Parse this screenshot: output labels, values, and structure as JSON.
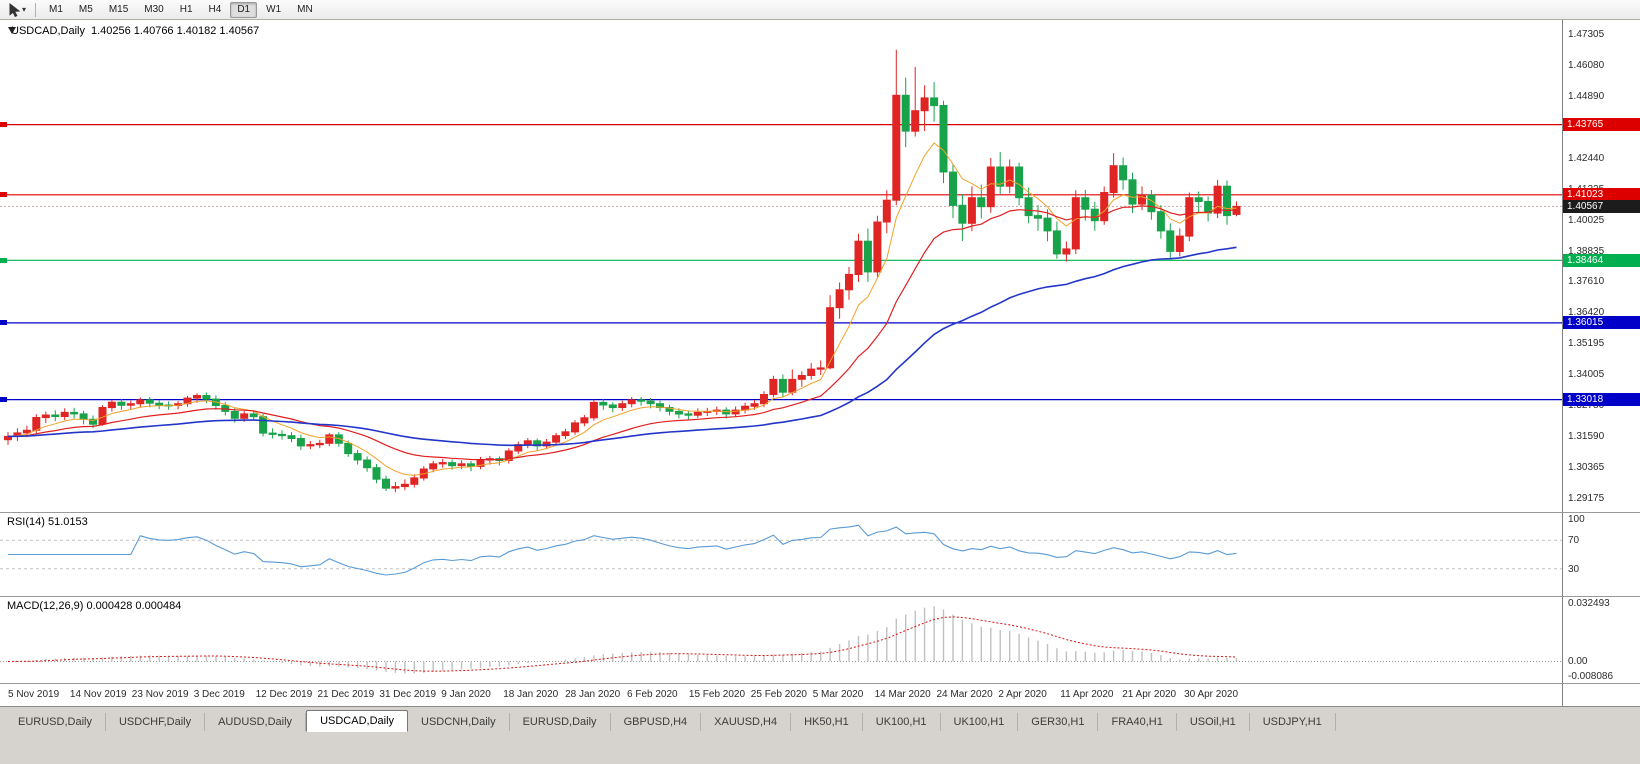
{
  "toolbar": {
    "timeframes": [
      "M1",
      "M5",
      "M15",
      "M30",
      "H1",
      "H4",
      "D1",
      "W1",
      "MN"
    ],
    "active": "D1"
  },
  "chart": {
    "title": "USDCAD,Daily",
    "ohlc": "1.40256 1.40766 1.40182 1.40567",
    "price_axis": {
      "top": 1.47305,
      "bottom": 1.29175,
      "labels": [
        "1.47305",
        "1.46080",
        "1.44890",
        "1.43660",
        "1.42440",
        "1.41225",
        "1.40025",
        "1.38835",
        "1.37610",
        "1.36420",
        "1.35195",
        "1.34005",
        "1.32780",
        "1.31590",
        "1.30365",
        "1.29175"
      ]
    },
    "hlines": [
      {
        "price": 1.43765,
        "label": "1.43765",
        "color": "#dd0000"
      },
      {
        "price": 1.41023,
        "label": "1.41023",
        "color": "#dd0000"
      },
      {
        "price": 1.38464,
        "label": "1.38464",
        "color": "#00b050"
      },
      {
        "price": 1.36015,
        "label": "1.36015",
        "color": "#0000c8"
      },
      {
        "price": 1.33018,
        "label": "1.33018",
        "color": "#0000c8"
      }
    ],
    "last_price": {
      "value": 1.40567,
      "label": "1.40567",
      "bg": "#1c1c1c"
    },
    "date_labels": [
      "5 Nov 2019",
      "14 Nov 2019",
      "23 Nov 2019",
      "3 Dec 2019",
      "12 Dec 2019",
      "21 Dec 2019",
      "31 Dec 2019",
      "9 Jan 2020",
      "18 Jan 2020",
      "28 Jan 2020",
      "6 Feb 2020",
      "15 Feb 2020",
      "25 Feb 2020",
      "5 Mar 2020",
      "14 Mar 2020",
      "24 Mar 2020",
      "2 Apr 2020",
      "11 Apr 2020",
      "21 Apr 2020",
      "30 Apr 2020"
    ]
  },
  "chart_data": {
    "type": "candlestick",
    "symbol": "USDCAD",
    "timeframe": "Daily",
    "up_color": "#e02525",
    "down_color": "#18a24a",
    "moving_averages": [
      {
        "period": 7,
        "color": "#f2a227",
        "width": 1
      },
      {
        "period": 20,
        "color": "#e02020",
        "width": 1.2
      },
      {
        "period": 55,
        "color": "#2336c9",
        "width": 1.6
      }
    ],
    "candles": [
      [
        1.3145,
        1.3175,
        1.3125,
        1.3158
      ],
      [
        1.3158,
        1.319,
        1.314,
        1.3172
      ],
      [
        1.3172,
        1.32,
        1.3155,
        1.3182
      ],
      [
        1.3182,
        1.3245,
        1.317,
        1.3232
      ],
      [
        1.3232,
        1.3255,
        1.321,
        1.3242
      ],
      [
        1.3242,
        1.326,
        1.3218,
        1.3236
      ],
      [
        1.3236,
        1.3268,
        1.3222,
        1.3252
      ],
      [
        1.3252,
        1.327,
        1.3228,
        1.3246
      ],
      [
        1.3246,
        1.3258,
        1.3205,
        1.3225
      ],
      [
        1.3225,
        1.324,
        1.319,
        1.3206
      ],
      [
        1.3206,
        1.328,
        1.32,
        1.3271
      ],
      [
        1.3271,
        1.33,
        1.3255,
        1.3292
      ],
      [
        1.3292,
        1.3305,
        1.3262,
        1.328
      ],
      [
        1.328,
        1.3298,
        1.3262,
        1.3286
      ],
      [
        1.3286,
        1.331,
        1.327,
        1.3301
      ],
      [
        1.3301,
        1.3312,
        1.3272,
        1.3288
      ],
      [
        1.3288,
        1.33,
        1.3265,
        1.3281
      ],
      [
        1.3281,
        1.3295,
        1.3262,
        1.3279
      ],
      [
        1.3279,
        1.3296,
        1.3264,
        1.3286
      ],
      [
        1.3286,
        1.3316,
        1.3274,
        1.3308
      ],
      [
        1.3308,
        1.3327,
        1.329,
        1.3318
      ],
      [
        1.3318,
        1.333,
        1.3288,
        1.3304
      ],
      [
        1.3304,
        1.3318,
        1.3262,
        1.3279
      ],
      [
        1.3279,
        1.3292,
        1.324,
        1.3256
      ],
      [
        1.3256,
        1.327,
        1.3212,
        1.3229
      ],
      [
        1.3229,
        1.3258,
        1.3215,
        1.3246
      ],
      [
        1.3246,
        1.326,
        1.322,
        1.3235
      ],
      [
        1.3235,
        1.3246,
        1.3158,
        1.3171
      ],
      [
        1.3171,
        1.319,
        1.315,
        1.3166
      ],
      [
        1.3166,
        1.3182,
        1.3145,
        1.3161
      ],
      [
        1.3161,
        1.3175,
        1.3135,
        1.315
      ],
      [
        1.315,
        1.3165,
        1.3105,
        1.3121
      ],
      [
        1.3121,
        1.314,
        1.3108,
        1.3126
      ],
      [
        1.3126,
        1.3145,
        1.3112,
        1.3131
      ],
      [
        1.3131,
        1.3172,
        1.312,
        1.3164
      ],
      [
        1.3164,
        1.3175,
        1.3118,
        1.3131
      ],
      [
        1.3131,
        1.3142,
        1.3078,
        1.3091
      ],
      [
        1.3091,
        1.3105,
        1.3048,
        1.3066
      ],
      [
        1.3066,
        1.308,
        1.302,
        1.3036
      ],
      [
        1.3036,
        1.305,
        1.2975,
        1.2991
      ],
      [
        1.2991,
        1.3005,
        1.2945,
        1.2956
      ],
      [
        1.2956,
        1.298,
        1.294,
        1.2962
      ],
      [
        1.2962,
        1.299,
        1.2948,
        1.2971
      ],
      [
        1.2971,
        1.301,
        1.2958,
        1.2996
      ],
      [
        1.2996,
        1.3042,
        1.2985,
        1.3031
      ],
      [
        1.3031,
        1.3062,
        1.3018,
        1.3051
      ],
      [
        1.3051,
        1.307,
        1.3036,
        1.3056
      ],
      [
        1.3056,
        1.3068,
        1.3028,
        1.3044
      ],
      [
        1.3044,
        1.3065,
        1.303,
        1.3051
      ],
      [
        1.3051,
        1.3062,
        1.3022,
        1.3041
      ],
      [
        1.3041,
        1.3078,
        1.303,
        1.3066
      ],
      [
        1.3066,
        1.3082,
        1.3048,
        1.3071
      ],
      [
        1.3071,
        1.308,
        1.3045,
        1.3064
      ],
      [
        1.3064,
        1.3112,
        1.3052,
        1.3101
      ],
      [
        1.3101,
        1.3138,
        1.309,
        1.3126
      ],
      [
        1.3126,
        1.3152,
        1.3112,
        1.3141
      ],
      [
        1.3141,
        1.315,
        1.3102,
        1.3121
      ],
      [
        1.3121,
        1.3148,
        1.3108,
        1.3136
      ],
      [
        1.3136,
        1.3172,
        1.3124,
        1.3161
      ],
      [
        1.3161,
        1.3188,
        1.3148,
        1.3176
      ],
      [
        1.3176,
        1.3222,
        1.3165,
        1.3211
      ],
      [
        1.3211,
        1.3242,
        1.3198,
        1.3231
      ],
      [
        1.3231,
        1.3302,
        1.322,
        1.3291
      ],
      [
        1.3291,
        1.3304,
        1.3262,
        1.3281
      ],
      [
        1.3281,
        1.3292,
        1.3252,
        1.3271
      ],
      [
        1.3271,
        1.3298,
        1.3258,
        1.3286
      ],
      [
        1.3286,
        1.3312,
        1.3272,
        1.3301
      ],
      [
        1.3301,
        1.3312,
        1.3278,
        1.3296
      ],
      [
        1.3296,
        1.3308,
        1.3268,
        1.3286
      ],
      [
        1.3286,
        1.3298,
        1.3255,
        1.3271
      ],
      [
        1.3271,
        1.3282,
        1.324,
        1.3256
      ],
      [
        1.3256,
        1.3268,
        1.3228,
        1.3246
      ],
      [
        1.3246,
        1.326,
        1.3225,
        1.3241
      ],
      [
        1.3241,
        1.3268,
        1.323,
        1.3252
      ],
      [
        1.3252,
        1.327,
        1.3238,
        1.3256
      ],
      [
        1.3256,
        1.3275,
        1.3242,
        1.3261
      ],
      [
        1.3261,
        1.3272,
        1.3228,
        1.3246
      ],
      [
        1.3246,
        1.3275,
        1.3235,
        1.3261
      ],
      [
        1.3261,
        1.329,
        1.3248,
        1.3276
      ],
      [
        1.3276,
        1.33,
        1.3262,
        1.3286
      ],
      [
        1.3286,
        1.3335,
        1.3272,
        1.3322
      ],
      [
        1.3322,
        1.3395,
        1.331,
        1.3381
      ],
      [
        1.3381,
        1.34,
        1.331,
        1.3331
      ],
      [
        1.3331,
        1.342,
        1.3318,
        1.3381
      ],
      [
        1.3381,
        1.3412,
        1.3352,
        1.3396
      ],
      [
        1.3396,
        1.3445,
        1.338,
        1.3421
      ],
      [
        1.3421,
        1.3455,
        1.3398,
        1.3426
      ],
      [
        1.3426,
        1.371,
        1.342,
        1.3661
      ],
      [
        1.3661,
        1.376,
        1.3618,
        1.3731
      ],
      [
        1.3731,
        1.382,
        1.3692,
        1.3791
      ],
      [
        1.3791,
        1.395,
        1.3762,
        1.3921
      ],
      [
        1.3921,
        1.397,
        1.3762,
        1.3801
      ],
      [
        1.3801,
        1.402,
        1.3781,
        1.3996
      ],
      [
        1.3996,
        1.412,
        1.3952,
        1.4081
      ],
      [
        1.4081,
        1.4669,
        1.4062,
        1.4491
      ],
      [
        1.4491,
        1.456,
        1.4288,
        1.4351
      ],
      [
        1.4351,
        1.4602,
        1.433,
        1.4431
      ],
      [
        1.4431,
        1.453,
        1.4351,
        1.4481
      ],
      [
        1.4481,
        1.4542,
        1.4388,
        1.4451
      ],
      [
        1.4451,
        1.447,
        1.4148,
        1.4191
      ],
      [
        1.4191,
        1.4222,
        1.4011,
        1.4061
      ],
      [
        1.4061,
        1.4105,
        1.3922,
        1.3991
      ],
      [
        1.3991,
        1.4135,
        1.396,
        1.4091
      ],
      [
        1.4091,
        1.4142,
        1.401,
        1.4056
      ],
      [
        1.4056,
        1.4246,
        1.4032,
        1.4211
      ],
      [
        1.4211,
        1.427,
        1.4105,
        1.4136
      ],
      [
        1.4136,
        1.424,
        1.4108,
        1.4211
      ],
      [
        1.4211,
        1.4228,
        1.4061,
        1.4091
      ],
      [
        1.4091,
        1.413,
        1.3991,
        1.4021
      ],
      [
        1.4021,
        1.4062,
        1.3961,
        1.4011
      ],
      [
        1.4011,
        1.4045,
        1.3921,
        1.3961
      ],
      [
        1.3961,
        1.3998,
        1.3852,
        1.3871
      ],
      [
        1.3871,
        1.392,
        1.3841,
        1.3891
      ],
      [
        1.3891,
        1.412,
        1.3871,
        1.4091
      ],
      [
        1.4091,
        1.4121,
        1.4001,
        1.4046
      ],
      [
        1.4046,
        1.4075,
        1.3962,
        1.4001
      ],
      [
        1.4001,
        1.4135,
        1.3985,
        1.4111
      ],
      [
        1.4111,
        1.4265,
        1.4091,
        1.4216
      ],
      [
        1.4216,
        1.4248,
        1.4122,
        1.4161
      ],
      [
        1.4161,
        1.4188,
        1.4031,
        1.4066
      ],
      [
        1.4066,
        1.4135,
        1.4042,
        1.4101
      ],
      [
        1.4101,
        1.4121,
        1.4005,
        1.4036
      ],
      [
        1.4036,
        1.4062,
        1.3931,
        1.3961
      ],
      [
        1.3961,
        1.3991,
        1.3851,
        1.3881
      ],
      [
        1.3881,
        1.3971,
        1.3861,
        1.3941
      ],
      [
        1.3941,
        1.4111,
        1.3921,
        1.4091
      ],
      [
        1.4091,
        1.4115,
        1.4032,
        1.4076
      ],
      [
        1.4076,
        1.4095,
        1.3998,
        1.4031
      ],
      [
        1.4031,
        1.4161,
        1.4011,
        1.4136
      ],
      [
        1.4136,
        1.4158,
        1.3985,
        1.4021
      ],
      [
        1.40256,
        1.40766,
        1.40182,
        1.40567
      ]
    ]
  },
  "rsi": {
    "label": "RSI(14)",
    "value": "51.0153",
    "period": 14,
    "line_color": "#5a9bd4",
    "levels": [
      70,
      30
    ],
    "axis": [
      {
        "label": "100",
        "value": 100
      },
      {
        "label": "70",
        "value": 70
      },
      {
        "label": "30",
        "value": 30
      }
    ]
  },
  "macd": {
    "label": "MACD(12,26,9)",
    "values": "0.000428 0.000484",
    "fast": 12,
    "slow": 26,
    "signal": 9,
    "hist_color": "#c0c0c0",
    "signal_color": "#e01010",
    "range": {
      "max": 0.032493,
      "min": -0.008086
    },
    "axis": [
      {
        "label": "0.032493",
        "value": 0.032493
      },
      {
        "label": "0.00",
        "value": 0
      },
      {
        "label": "-0.008086",
        "value": -0.008086
      }
    ]
  },
  "tabs": {
    "active_index": 3,
    "items": [
      "EURUSD,Daily",
      "USDCHF,Daily",
      "AUDUSD,Daily",
      "USDCAD,Daily",
      "USDCNH,Daily",
      "EURUSD,Daily",
      "GBPUSD,H4",
      "XAUUSD,H4",
      "HK50,H1",
      "UK100,H1",
      "UK100,H1",
      "GER30,H1",
      "FRA40,H1",
      "USOil,H1",
      "USDJPY,H1"
    ]
  }
}
